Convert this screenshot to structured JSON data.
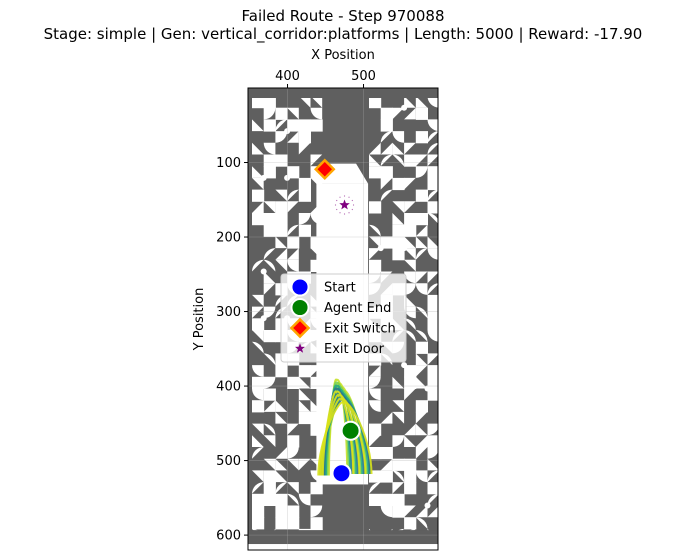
{
  "chart_data": {
    "type": "scatter",
    "title": "Failed Route - Step 970088",
    "subtitle": "Stage: simple | Gen: vertical_corridor:platforms | Length: 5000 | Reward: -17.90",
    "xlabel": "X Position",
    "ylabel": "Y Position",
    "xaxis_position": "top",
    "yaxis_inverted": true,
    "xlim": [
      348,
      598
    ],
    "ylim": [
      620,
      0
    ],
    "xticks": [
      400,
      500
    ],
    "yticks": [
      100,
      200,
      300,
      400,
      500,
      600
    ],
    "grid": true,
    "legend_position": "center",
    "tile_colors": {
      "wall": "#5f5f5f",
      "empty": "#ffffff"
    },
    "corridor": {
      "x": [
        438,
        506
      ],
      "y": [
        88,
        532
      ]
    },
    "series": [
      {
        "name": "Start",
        "marker": "circle",
        "color": "#0000ff",
        "points": [
          [
            471,
            517
          ]
        ]
      },
      {
        "name": "Agent End",
        "marker": "circle",
        "color": "#008000",
        "points": [
          [
            483,
            460
          ]
        ]
      },
      {
        "name": "Exit Switch",
        "marker": "diamond",
        "color": "#ff0000",
        "edge_color": "#ffa500",
        "points": [
          [
            449,
            109
          ]
        ]
      },
      {
        "name": "Exit Door",
        "marker": "star",
        "color": "#800080",
        "points": [
          [
            475,
            157
          ]
        ]
      }
    ],
    "trajectory_colors": [
      "#c6e12a",
      "#7ad151",
      "#22a884",
      "#2a788e",
      "#d8e219"
    ]
  }
}
